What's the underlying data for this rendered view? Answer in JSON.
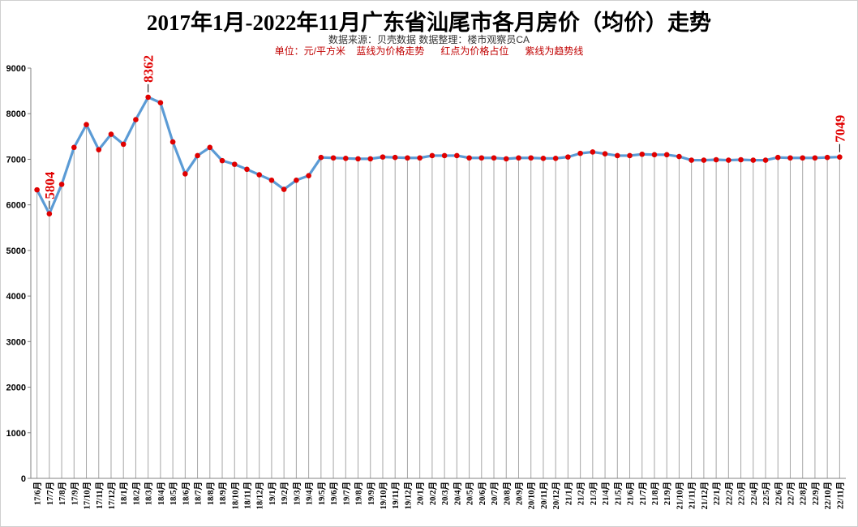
{
  "header": {
    "title": "2017年1月-2022年11月广东省汕尾市各月房价（均价）走势",
    "source_line": "数据来源：贝壳数据  数据整理：楼市观察员CA",
    "legend_line": "单位：元/平方米    蓝线为价格走势      红点为价格占位      紫线为趋势线"
  },
  "colors": {
    "line": "#5b9bd5",
    "point": "#e00000",
    "annotation": "#e00000",
    "gridline": "#a6a6a6"
  },
  "chart_data": {
    "type": "line",
    "title": "2017年1月-2022年11月广东省汕尾市各月房价（均价）走势",
    "xlabel": "",
    "ylabel": "",
    "ylim": [
      0,
      9000
    ],
    "yticks": [
      0,
      1000,
      2000,
      3000,
      4000,
      5000,
      6000,
      7000,
      8000,
      9000
    ],
    "grid": "vertical",
    "categories": [
      "17/6月",
      "17/7月",
      "17/8月",
      "17/9月",
      "17/10月",
      "17/11月",
      "17/12月",
      "18/1月",
      "18/2月",
      "18/3月",
      "18/4月",
      "18/5月",
      "18/6月",
      "18/7月",
      "18/8月",
      "18/9月",
      "18/10月",
      "18/11月",
      "18/12月",
      "19/1月",
      "19/2月",
      "19/3月",
      "19/4月",
      "19/5月",
      "19/6月",
      "19/7月",
      "19/8月",
      "19/9月",
      "19/10月",
      "19/11月",
      "19/12月",
      "20/1月",
      "20/2月",
      "20/3月",
      "20/4月",
      "20/5月",
      "20/6月",
      "20/7月",
      "20/8月",
      "20/9月",
      "20/10月",
      "20/11月",
      "20/12月",
      "21/1月",
      "21/2月",
      "21/3月",
      "21/4月",
      "21/5月",
      "21/6月",
      "21/7月",
      "21/8月",
      "21/9月",
      "21/10月",
      "21/11月",
      "21/12月",
      "22/1月",
      "22/2月",
      "22/3月",
      "22/4月",
      "22/5月",
      "22/6月",
      "22/7月",
      "22/8月",
      "22/9月",
      "22/10月",
      "22/11月"
    ],
    "series": [
      {
        "values": [
          6330,
          5804,
          6450,
          7260,
          7760,
          7210,
          7550,
          7330,
          7870,
          8362,
          8240,
          7380,
          6680,
          7080,
          7260,
          6970,
          6890,
          6780,
          6660,
          6540,
          6340,
          6540,
          6640,
          7040,
          7030,
          7020,
          7010,
          7010,
          7050,
          7040,
          7030,
          7030,
          7080,
          7080,
          7080,
          7030,
          7030,
          7030,
          7010,
          7030,
          7030,
          7020,
          7020,
          7050,
          7130,
          7160,
          7120,
          7080,
          7080,
          7110,
          7100,
          7100,
          7060,
          6980,
          6980,
          6990,
          6980,
          6990,
          6980,
          6980,
          7040,
          7030,
          7030,
          7030,
          7040,
          7049
        ]
      }
    ],
    "annotations": [
      {
        "category": "17/7月",
        "label": "5804"
      },
      {
        "category": "18/3月",
        "label": "8362"
      },
      {
        "category": "22/11月",
        "label": "7049"
      }
    ]
  }
}
